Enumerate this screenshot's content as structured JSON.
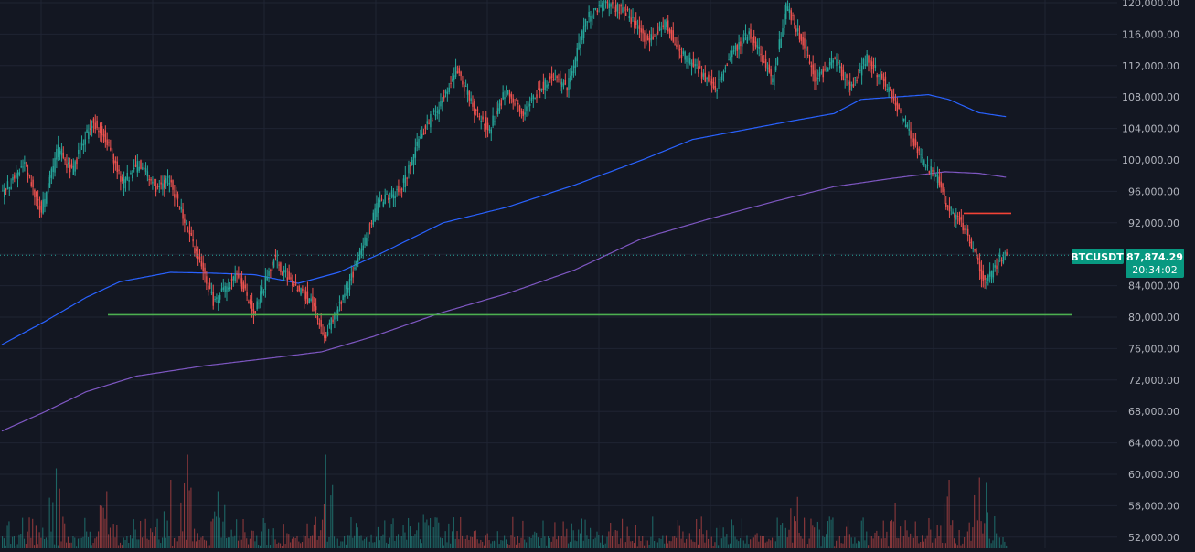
{
  "colors": {
    "background": "#131722",
    "grid": "#1f2433",
    "bull": "#26a69a",
    "bear": "#ef5350",
    "ma_fast": "#2962ff",
    "ma_slow": "#7e57c2",
    "support": "#4caf50",
    "resistance": "#f44336",
    "axis_text": "#b2b5be",
    "badge": "#089981",
    "last_price_line": "#26a69a"
  },
  "chart_data": {
    "type": "candlestick",
    "symbol": "BTCUSDT",
    "last_price": "87,874.29",
    "countdown": "20:34:02",
    "ylim": [
      50000,
      122000
    ],
    "y_ticks": [
      "52,000.00",
      "56,000.00",
      "60,000.00",
      "64,000.00",
      "68,000.00",
      "72,000.00",
      "76,000.00",
      "80,000.00",
      "84,000.00",
      "88,000.00",
      "92,000.00",
      "96,000.00",
      "100,000.00",
      "104,000.00",
      "108,000.00",
      "112,000.00",
      "116,000.00",
      "120,000.00"
    ],
    "grid": true,
    "horizontal_levels": [
      {
        "role": "support",
        "value": 80300
      },
      {
        "role": "resistance",
        "value": 93200
      }
    ],
    "price_anchors": [
      [
        0,
        95500
      ],
      [
        14,
        99500
      ],
      [
        24,
        93500
      ],
      [
        34,
        101500
      ],
      [
        42,
        98500
      ],
      [
        54,
        105000
      ],
      [
        62,
        103000
      ],
      [
        72,
        97000
      ],
      [
        82,
        99500
      ],
      [
        92,
        96500
      ],
      [
        100,
        97500
      ],
      [
        112,
        90500
      ],
      [
        126,
        82000
      ],
      [
        140,
        85500
      ],
      [
        150,
        80500
      ],
      [
        162,
        87500
      ],
      [
        174,
        84000
      ],
      [
        184,
        82000
      ],
      [
        192,
        77500
      ],
      [
        210,
        86000
      ],
      [
        224,
        94500
      ],
      [
        238,
        96500
      ],
      [
        250,
        103500
      ],
      [
        262,
        107500
      ],
      [
        270,
        111500
      ],
      [
        282,
        106000
      ],
      [
        290,
        104000
      ],
      [
        300,
        109000
      ],
      [
        310,
        105500
      ],
      [
        318,
        108500
      ],
      [
        326,
        110500
      ],
      [
        336,
        109500
      ],
      [
        348,
        118000
      ],
      [
        360,
        120000
      ],
      [
        372,
        118500
      ],
      [
        384,
        115000
      ],
      [
        394,
        117500
      ],
      [
        404,
        113500
      ],
      [
        414,
        111500
      ],
      [
        424,
        109000
      ],
      [
        434,
        113500
      ],
      [
        444,
        116000
      ],
      [
        452,
        113000
      ],
      [
        458,
        110000
      ],
      [
        466,
        119500
      ],
      [
        476,
        115000
      ],
      [
        484,
        110000
      ],
      [
        494,
        113000
      ],
      [
        504,
        109000
      ],
      [
        514,
        113000
      ],
      [
        524,
        110000
      ],
      [
        532,
        106500
      ],
      [
        540,
        103000
      ],
      [
        548,
        99500
      ],
      [
        556,
        97500
      ],
      [
        562,
        94000
      ],
      [
        570,
        92000
      ],
      [
        578,
        88000
      ],
      [
        584,
        84200
      ],
      [
        590,
        86500
      ],
      [
        596,
        88000
      ]
    ],
    "volume_ylim": [
      0,
      100
    ],
    "volume_spikes": [
      [
        32,
        70
      ],
      [
        62,
        50
      ],
      [
        100,
        60
      ],
      [
        110,
        82
      ],
      [
        128,
        50
      ],
      [
        192,
        82
      ],
      [
        250,
        30
      ],
      [
        472,
        45
      ],
      [
        530,
        40
      ],
      [
        562,
        60
      ],
      [
        580,
        62
      ],
      [
        584,
        58
      ]
    ],
    "ma_fast": [
      [
        0,
        76500
      ],
      [
        26,
        79500
      ],
      [
        50,
        82500
      ],
      [
        70,
        84500
      ],
      [
        100,
        85700
      ],
      [
        124,
        85600
      ],
      [
        150,
        85400
      ],
      [
        176,
        84300
      ],
      [
        200,
        85700
      ],
      [
        224,
        88000
      ],
      [
        262,
        92000
      ],
      [
        300,
        94000
      ],
      [
        340,
        96800
      ],
      [
        380,
        100000
      ],
      [
        410,
        102600
      ],
      [
        440,
        103800
      ],
      [
        470,
        105000
      ],
      [
        494,
        105900
      ],
      [
        510,
        107700
      ],
      [
        530,
        108000
      ],
      [
        550,
        108300
      ],
      [
        562,
        107700
      ],
      [
        580,
        106000
      ],
      [
        596,
        105500
      ]
    ],
    "ma_slow": [
      [
        0,
        65500
      ],
      [
        26,
        68000
      ],
      [
        50,
        70500
      ],
      [
        80,
        72500
      ],
      [
        120,
        73800
      ],
      [
        160,
        74800
      ],
      [
        190,
        75600
      ],
      [
        220,
        77500
      ],
      [
        260,
        80500
      ],
      [
        300,
        83000
      ],
      [
        340,
        86000
      ],
      [
        380,
        90000
      ],
      [
        420,
        92500
      ],
      [
        460,
        94800
      ],
      [
        494,
        96600
      ],
      [
        530,
        97700
      ],
      [
        560,
        98500
      ],
      [
        580,
        98300
      ],
      [
        596,
        97800
      ]
    ]
  }
}
